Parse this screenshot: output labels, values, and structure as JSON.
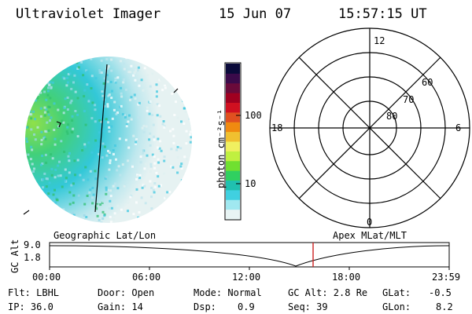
{
  "header": {
    "instrument": "Ultraviolet Imager",
    "date": "15 Jun 07",
    "time": "15:57:15 UT"
  },
  "colorbar": {
    "unit_label": "photon cm⁻²s⁻¹",
    "tick_labels": [
      "100",
      "10"
    ],
    "colors": [
      "#0a0a3a",
      "#3a0a4a",
      "#6a0a3a",
      "#a00020",
      "#d01020",
      "#e05020",
      "#f08a10",
      "#f0c030",
      "#f0f060",
      "#c0f040",
      "#70e030",
      "#30d060",
      "#20c0b0",
      "#40d0e0",
      "#a0e8f0",
      "#e8f4f4"
    ]
  },
  "polar_plot": {
    "labels": {
      "mlt12": "12",
      "mlt18": "18",
      "mlt6": "6",
      "mlt0": "0",
      "lat60": "60",
      "lat70": "70",
      "lat80": "80"
    }
  },
  "timeline": {
    "left_label": "Geographic Lat/Lon",
    "right_label": "Apex MLat/MLT",
    "axis_label": "GC Alt",
    "y_max": "9.0",
    "y_min": "1.8",
    "x_ticks": [
      "00:00",
      "06:00",
      "12:00",
      "18:00",
      "23:59"
    ],
    "marker_color": "#cc2222"
  },
  "status": {
    "filter": "Flt: LBHL",
    "ip": "IP: 36.0",
    "door": "Door: Open",
    "gain": "Gain: 14",
    "mode": "Mode: Normal",
    "dsp_label": "Dsp:",
    "dsp_value": "0.9",
    "gc_alt": "GC Alt: 2.8 Re",
    "seq": "Seq: 39",
    "glat_label": "GLat:",
    "glat_value": "-0.5",
    "glon_label": "GLon:",
    "glon_value": "8.2"
  }
}
